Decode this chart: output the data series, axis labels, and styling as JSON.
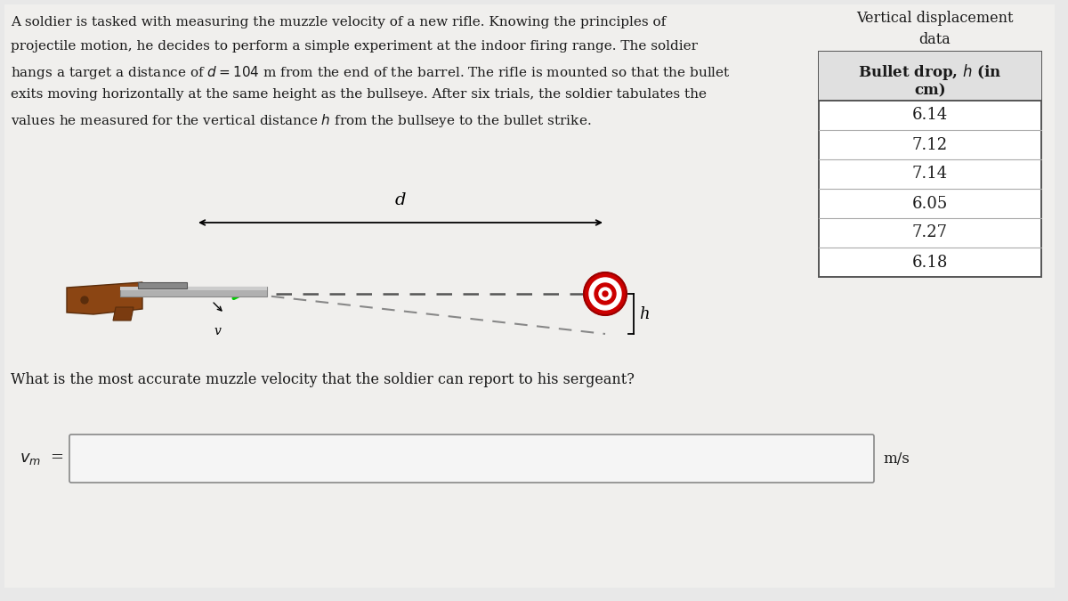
{
  "bg_color": "#e8e8e8",
  "content_bg": "#f0efed",
  "text_color": "#1a1a1a",
  "table_title": "Vertical displacement\ndata",
  "table_values": [
    6.14,
    7.12,
    7.14,
    6.05,
    7.27,
    6.18
  ],
  "question": "What is the most accurate muzzle velocity that the soldier can report to his sergeant?",
  "answer_label_main": "v",
  "answer_label_sub": "m",
  "answer_unit": "m/s",
  "diagram_label_d": "d",
  "diagram_label_v_arrow": "→",
  "diagram_label_v": "v",
  "diagram_label_h": "h",
  "rifle_stock_color": "#8B4513",
  "rifle_barrel_color": "#aaaaaa",
  "arrow_color": "#00cc00",
  "target_colors": [
    "#cc0000",
    "#ffffff",
    "#cc0000",
    "#ffffff",
    "#cc0000"
  ],
  "target_radii": [
    24,
    18,
    12,
    7,
    3
  ],
  "para_line1": "A soldier is tasked with measuring the muzzle velocity of a new rifle. Knowing the principles of",
  "para_line2": "projectile motion, he decides to perform a simple experiment at the indoor firing range. The soldier",
  "para_line3": "hangs a target a distance of $d = 104$ m from the end of the barrel. The rifle is mounted so that the bullet",
  "para_line4": "exits moving horizontally at the same height as the bullseye. After six trials, the soldier tabulates the",
  "para_line5": "values he measured for the vertical distance $h$ from the bullseye to the bullet strike."
}
